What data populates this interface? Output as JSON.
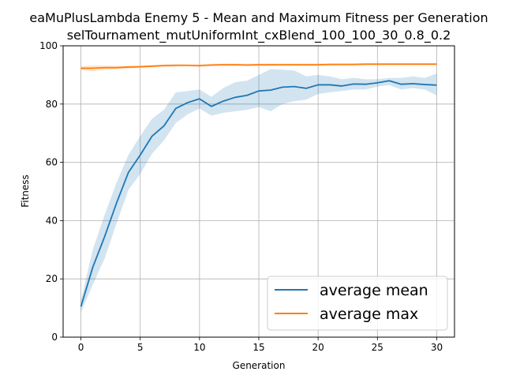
{
  "chart_data": {
    "type": "line",
    "title": "eaMuPlusLambda Enemy 5 - Mean and Maximum Fitness per Generation",
    "subtitle": "selTournament_mutUniformInt_cxBlend_100_100_30_0.8_0.2",
    "xlabel": "Generation",
    "ylabel": "Fitness",
    "xlim": [
      -1.5,
      31.5
    ],
    "ylim": [
      0,
      100
    ],
    "xticks": [
      0,
      5,
      10,
      15,
      20,
      25,
      30
    ],
    "yticks": [
      0,
      20,
      40,
      60,
      80,
      100
    ],
    "grid": true,
    "legend_position": "lower-right",
    "x": [
      0,
      1,
      2,
      3,
      4,
      5,
      6,
      7,
      8,
      9,
      10,
      11,
      12,
      13,
      14,
      15,
      16,
      17,
      18,
      19,
      20,
      21,
      22,
      23,
      24,
      25,
      26,
      27,
      28,
      29,
      30
    ],
    "series": [
      {
        "name": "average mean",
        "color": "#1f77b4",
        "values": [
          10.5,
          24.0,
          34.5,
          46.0,
          56.5,
          62.5,
          69.0,
          72.5,
          78.5,
          80.5,
          81.8,
          79.2,
          81.0,
          82.3,
          83.0,
          84.5,
          84.8,
          85.8,
          86.0,
          85.4,
          86.6,
          86.6,
          86.2,
          86.9,
          86.8,
          87.3,
          88.0,
          86.8,
          87.0,
          86.7,
          86.5
        ],
        "band_upper": [
          12.5,
          30.0,
          42.0,
          53.0,
          62.5,
          69.0,
          75.0,
          78.0,
          84.0,
          84.5,
          85.0,
          82.5,
          85.5,
          87.5,
          88.0,
          90.0,
          92.0,
          91.8,
          91.5,
          89.5,
          90.0,
          89.5,
          88.5,
          89.0,
          88.5,
          88.5,
          89.0,
          89.0,
          89.5,
          89.0,
          90.5
        ],
        "band_lower": [
          8.5,
          18.0,
          27.0,
          39.0,
          50.5,
          56.0,
          63.0,
          67.5,
          73.5,
          76.5,
          78.5,
          76.0,
          77.0,
          77.5,
          78.0,
          79.0,
          77.5,
          80.0,
          81.0,
          81.5,
          83.5,
          84.0,
          84.5,
          85.0,
          85.0,
          86.0,
          86.5,
          85.0,
          85.5,
          85.0,
          83.0
        ]
      },
      {
        "name": "average max",
        "color": "#ff7f0e",
        "values": [
          92.3,
          92.3,
          92.5,
          92.5,
          92.7,
          92.8,
          93.0,
          93.2,
          93.3,
          93.3,
          93.2,
          93.4,
          93.5,
          93.5,
          93.4,
          93.5,
          93.5,
          93.5,
          93.5,
          93.5,
          93.5,
          93.6,
          93.6,
          93.6,
          93.7,
          93.7,
          93.7,
          93.7,
          93.7,
          93.7,
          93.7
        ],
        "band_upper": [
          93.0,
          93.3,
          93.2,
          93.1,
          93.2,
          93.2,
          93.4,
          93.6,
          93.7,
          93.6,
          93.6,
          93.8,
          93.9,
          93.9,
          93.8,
          93.9,
          93.9,
          93.9,
          93.9,
          93.9,
          93.9,
          94.0,
          94.0,
          94.0,
          94.1,
          94.1,
          94.1,
          94.1,
          94.1,
          94.1,
          94.1
        ],
        "band_lower": [
          91.6,
          91.3,
          91.8,
          91.9,
          92.2,
          92.4,
          92.6,
          92.8,
          92.9,
          93.0,
          92.8,
          93.0,
          93.1,
          93.1,
          93.0,
          93.1,
          93.1,
          93.1,
          93.1,
          93.1,
          93.1,
          93.2,
          93.2,
          93.2,
          93.3,
          93.3,
          93.3,
          93.3,
          93.3,
          93.3,
          93.3
        ]
      }
    ]
  }
}
